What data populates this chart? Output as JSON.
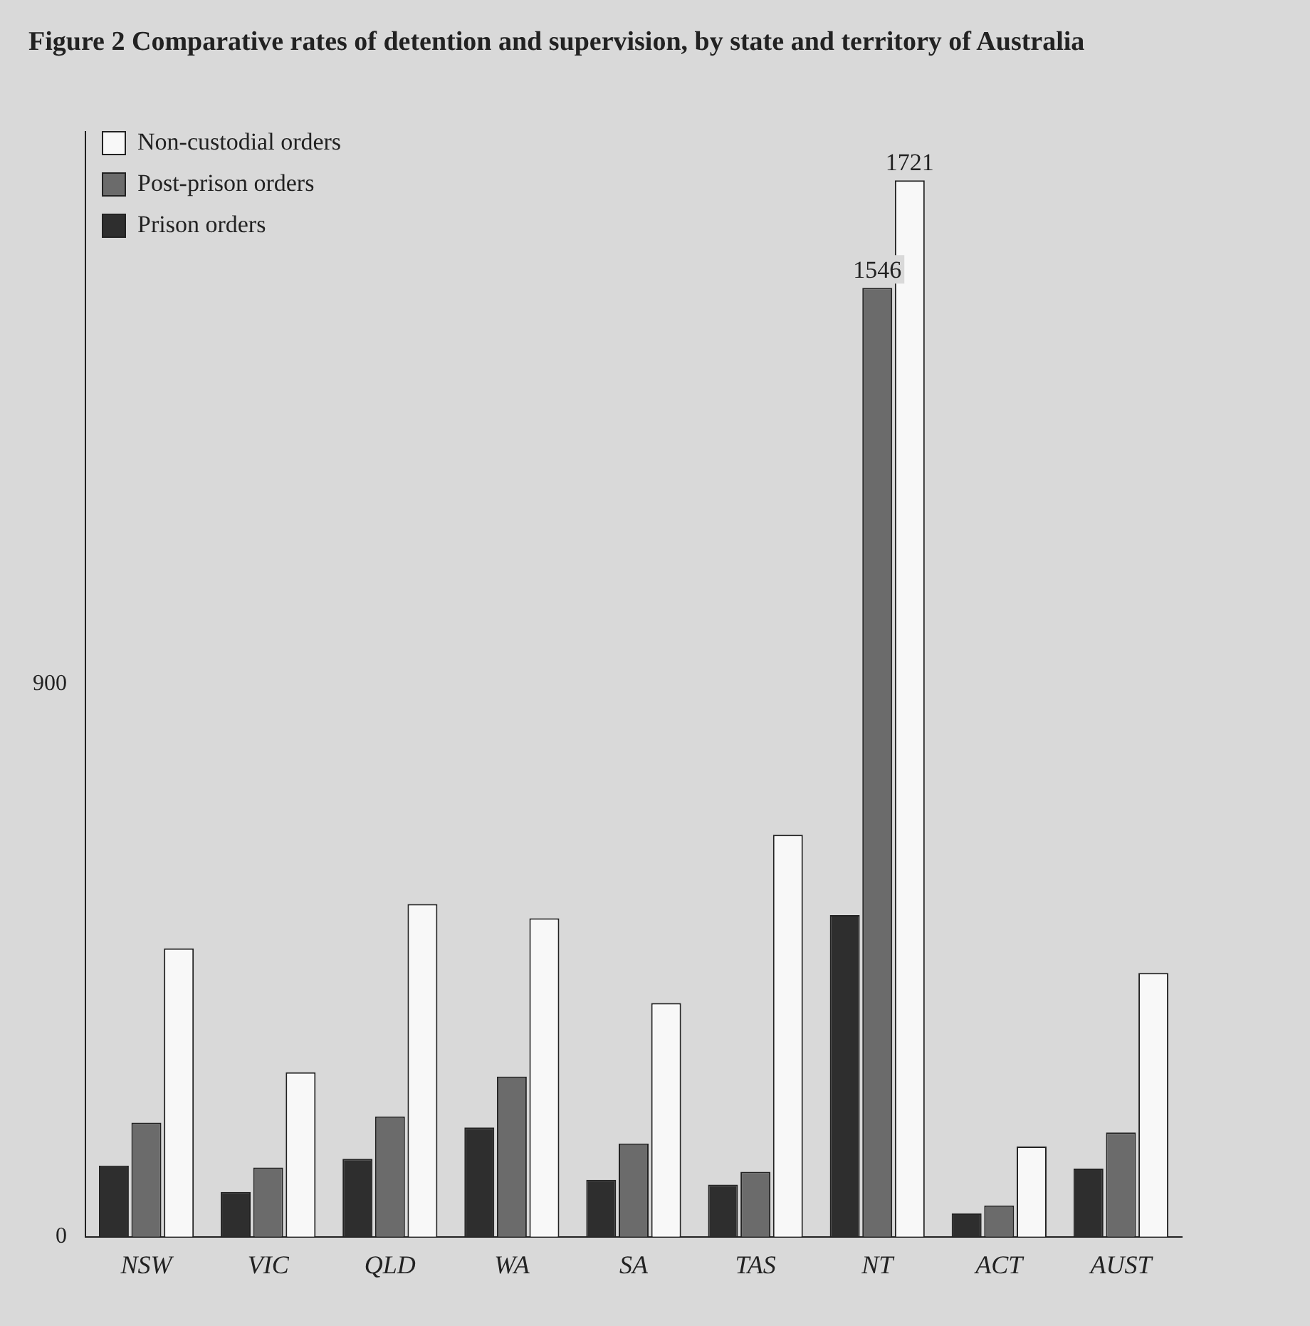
{
  "chart_data": {
    "type": "bar",
    "title": "Figure 2   Comparative rates of detention and supervision, by state and territory of Australia",
    "categories": [
      "NSW",
      "VIC",
      "QLD",
      "WA",
      "SA",
      "TAS",
      "NT",
      "ACT",
      "AUST"
    ],
    "series": [
      {
        "name": "Prison orders",
        "color": "#2e2e2e",
        "values": [
          116,
          73,
          127,
          178,
          93,
          85,
          524,
          38,
          111
        ]
      },
      {
        "name": "Post-prison orders",
        "color": "#6b6b6b",
        "values": [
          186,
          113,
          196,
          261,
          152,
          106,
          1546,
          51,
          170
        ],
        "value_labels": [
          null,
          null,
          null,
          null,
          null,
          null,
          "1546",
          null,
          null
        ]
      },
      {
        "name": "Non-custodial orders",
        "color": "#f8f8f8",
        "values": [
          470,
          268,
          542,
          519,
          381,
          655,
          1721,
          147,
          430
        ],
        "value_labels": [
          null,
          null,
          null,
          null,
          null,
          null,
          "1721",
          null,
          null
        ]
      }
    ],
    "ylim": [
      0,
      1800
    ],
    "yticks": [
      0,
      900
    ],
    "grid": false,
    "legend": "top left"
  }
}
